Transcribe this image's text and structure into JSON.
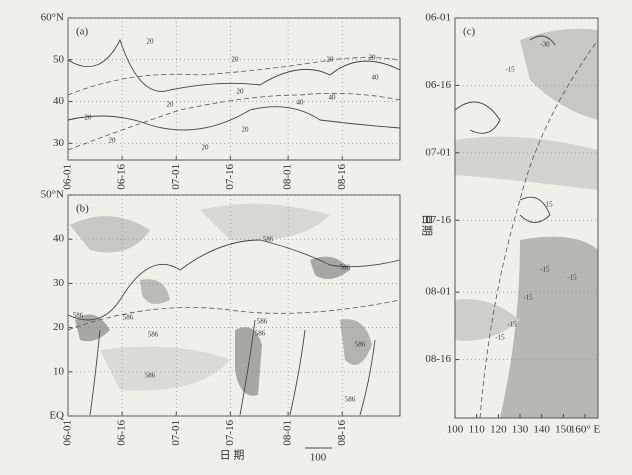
{
  "chart_data": [
    {
      "type": "contour",
      "panel_label": "(a)",
      "xlim": [
        0,
        92
      ],
      "xticks": [
        {
          "value": 0,
          "label": "06-01"
        },
        {
          "value": 15,
          "label": "06-16"
        },
        {
          "value": 30,
          "label": "07-01"
        },
        {
          "value": 45,
          "label": "07-16"
        },
        {
          "value": 61,
          "label": "08-01"
        },
        {
          "value": 76,
          "label": "08-16"
        }
      ],
      "ylim": [
        26,
        60
      ],
      "yticks": [
        30,
        40,
        50,
        {
          "value": 60,
          "label": "60°N"
        }
      ],
      "annotations": [
        "20",
        "20",
        "20",
        "20",
        "20",
        "20",
        "20",
        "20",
        "40",
        "20",
        "40",
        "20",
        "40"
      ]
    },
    {
      "type": "contour",
      "panel_label": "(b)",
      "xlabel": "日  期",
      "arrow_label": "100",
      "xlim": [
        0,
        92
      ],
      "xticks": [
        {
          "value": 0,
          "label": "06-01"
        },
        {
          "value": 15,
          "label": "06-16"
        },
        {
          "value": 30,
          "label": "07-01"
        },
        {
          "value": 45,
          "label": "07-16"
        },
        {
          "value": 61,
          "label": "08-01"
        },
        {
          "value": 76,
          "label": "08-16"
        }
      ],
      "ylim": [
        0,
        50
      ],
      "yticks": [
        {
          "value": 0,
          "label": "EQ"
        },
        10,
        20,
        30,
        40,
        {
          "value": 50,
          "label": "50°N"
        }
      ],
      "annotations": [
        "586",
        "586",
        "586",
        "586",
        "586",
        "586",
        "586",
        "586",
        "586",
        "586"
      ]
    },
    {
      "type": "contour",
      "panel_label": "(c)",
      "ylabel": "日期",
      "xlim": [
        100,
        166
      ],
      "xticks": [
        100,
        110,
        120,
        130,
        140,
        150,
        {
          "value": 160,
          "label": "160° E"
        }
      ],
      "ylim": [
        0,
        89
      ],
      "yticks": [
        {
          "value": 0,
          "label": "06-01"
        },
        {
          "value": 15,
          "label": "06-16"
        },
        {
          "value": 30,
          "label": "07-01"
        },
        {
          "value": 45,
          "label": "07-16"
        },
        {
          "value": 61,
          "label": "08-01"
        },
        {
          "value": 76,
          "label": "08-16"
        }
      ],
      "annotations": [
        "-30",
        "-15",
        "-15",
        "-15",
        "-15",
        "-15",
        "-15",
        "-15"
      ]
    }
  ]
}
